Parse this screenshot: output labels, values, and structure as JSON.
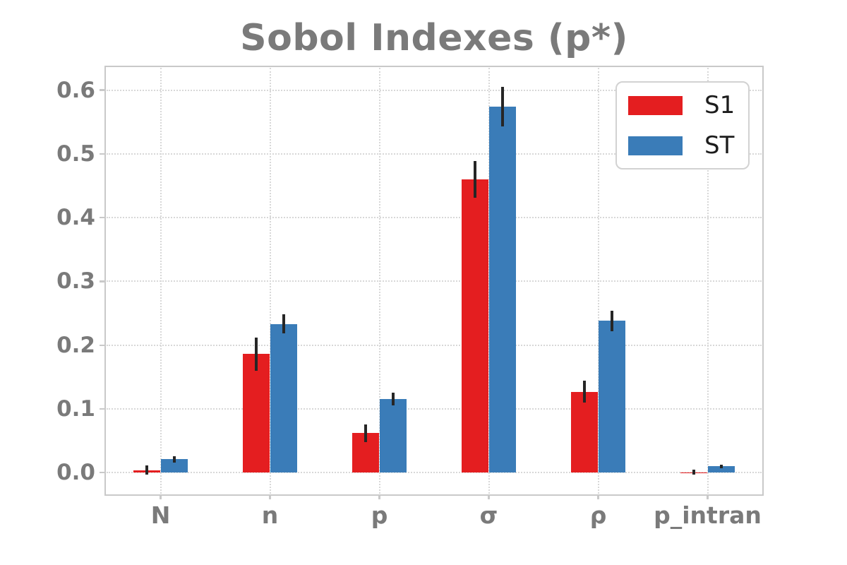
{
  "chart_data": {
    "type": "bar",
    "title": "Sobol Indexes (p*)",
    "categories": [
      "N",
      "n",
      "p",
      "σ",
      "ρ",
      "p_intran"
    ],
    "series": [
      {
        "name": "S1",
        "color": "#e41e20",
        "values": [
          0.004,
          0.186,
          0.062,
          0.46,
          0.127,
          0.0005
        ],
        "errors": [
          0.007,
          0.026,
          0.014,
          0.029,
          0.017,
          0.004
        ]
      },
      {
        "name": "ST",
        "color": "#3a7cb8",
        "values": [
          0.021,
          0.233,
          0.115,
          0.574,
          0.238,
          0.01
        ],
        "errors": [
          0.005,
          0.015,
          0.01,
          0.031,
          0.016,
          0.003
        ]
      }
    ],
    "xlabel": "",
    "ylabel": "",
    "yticks": [
      0.0,
      0.1,
      0.2,
      0.3,
      0.4,
      0.5,
      0.6
    ],
    "ytick_labels": [
      "0.0",
      "0.1",
      "0.2",
      "0.3",
      "0.4",
      "0.5",
      "0.6"
    ],
    "ylim": [
      -0.034,
      0.636
    ],
    "grid": true,
    "legend": {
      "position": "upper right",
      "labels": [
        "S1",
        "ST"
      ]
    },
    "colors": {
      "background": "#ffffff",
      "text_gray": "#7a7a7a",
      "grid": "#d8d8d8",
      "spine": "#c9c9c9",
      "error_bar": "#262626",
      "legend_text": "#1c1c1c",
      "legend_border": "#d2d2d2"
    }
  }
}
